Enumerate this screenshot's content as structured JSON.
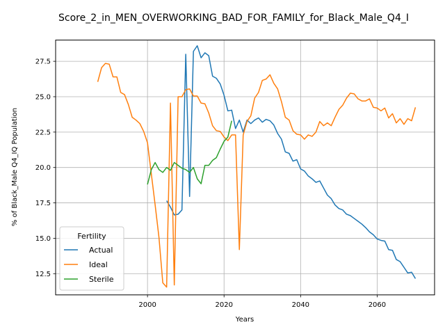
{
  "chart_data": {
    "type": "line",
    "title": "Score_2_in_MEN_OVERWORKING_BAD_FOR_FAMILY_for_Black_Male_Q4_I",
    "xlabel": "Years",
    "ylabel": "% of Black_Male Q4_IQ Population",
    "xlim": [
      1976,
      2075
    ],
    "ylim": [
      11.0,
      29.0
    ],
    "xticks": [
      2000,
      2020,
      2040,
      2060
    ],
    "yticks": [
      12.5,
      15.0,
      17.5,
      20.0,
      22.5,
      25.0,
      27.5
    ],
    "grid": true,
    "legend": {
      "title": "Fertility",
      "placement": "lower left"
    },
    "series": [
      {
        "name": "Actual",
        "color": "#1f77b4",
        "x": [
          2005,
          2006,
          2007,
          2008,
          2009,
          2010,
          2011,
          2012,
          2013,
          2014,
          2015,
          2016,
          2017,
          2018,
          2019,
          2020,
          2021,
          2022,
          2023,
          2024,
          2025,
          2026,
          2027,
          2028,
          2029,
          2030,
          2031,
          2032,
          2033,
          2034,
          2035,
          2036,
          2037,
          2038,
          2039,
          2040,
          2041,
          2042,
          2043,
          2044,
          2045,
          2046,
          2047,
          2048,
          2049,
          2050,
          2051,
          2052,
          2053,
          2054,
          2055,
          2056,
          2057,
          2058,
          2059,
          2060,
          2061,
          2062,
          2063,
          2064,
          2065,
          2066,
          2067,
          2068,
          2069,
          2070
        ],
        "y": [
          17.65,
          17.2,
          16.65,
          16.7,
          17.0,
          28.0,
          17.95,
          28.2,
          28.6,
          27.75,
          28.1,
          27.9,
          26.45,
          26.3,
          25.9,
          25.1,
          24.0,
          24.05,
          22.75,
          23.35,
          22.5,
          23.35,
          23.1,
          23.35,
          23.5,
          23.2,
          23.4,
          23.3,
          23.0,
          22.4,
          22.0,
          21.1,
          21.0,
          20.45,
          20.55,
          19.9,
          19.75,
          19.4,
          19.2,
          18.95,
          19.05,
          18.55,
          18.05,
          17.8,
          17.35,
          17.1,
          17.0,
          16.7,
          16.6,
          16.4,
          16.2,
          16.0,
          15.75,
          15.45,
          15.25,
          14.95,
          14.85,
          14.8,
          14.2,
          14.15,
          13.5,
          13.35,
          12.95,
          12.55,
          12.6,
          12.15
        ]
      },
      {
        "name": "Ideal",
        "color": "#ff7f0e",
        "x": [
          1987,
          1988,
          1989,
          1990,
          1991,
          1992,
          1993,
          1994,
          1995,
          1996,
          1997,
          1998,
          1999,
          2000,
          2001,
          2002,
          2003,
          2004,
          2005,
          2006,
          2007,
          2008,
          2009,
          2010,
          2011,
          2012,
          2013,
          2014,
          2015,
          2016,
          2017,
          2018,
          2019,
          2020,
          2021,
          2022,
          2023,
          2024,
          2025,
          2026,
          2027,
          2028,
          2029,
          2030,
          2031,
          2032,
          2033,
          2034,
          2035,
          2036,
          2037,
          2038,
          2039,
          2040,
          2041,
          2042,
          2043,
          2044,
          2045,
          2046,
          2047,
          2048,
          2049,
          2050,
          2051,
          2052,
          2053,
          2054,
          2055,
          2056,
          2057,
          2058,
          2059,
          2060,
          2061,
          2062,
          2063,
          2064,
          2065,
          2066,
          2067,
          2068,
          2069,
          2070
        ],
        "y": [
          26.05,
          27.05,
          27.35,
          27.3,
          26.4,
          26.4,
          25.3,
          25.15,
          24.45,
          23.55,
          23.35,
          23.1,
          22.55,
          21.75,
          19.55,
          17.35,
          15.05,
          11.85,
          11.55,
          24.55,
          11.7,
          25.0,
          25.0,
          25.5,
          25.55,
          25.05,
          25.05,
          24.55,
          24.5,
          23.85,
          22.95,
          22.6,
          22.55,
          22.15,
          21.9,
          22.3,
          22.3,
          14.2,
          22.3,
          23.25,
          23.65,
          24.9,
          25.3,
          26.15,
          26.25,
          26.55,
          25.95,
          25.55,
          24.65,
          23.55,
          23.35,
          22.6,
          22.35,
          22.3,
          22.0,
          22.3,
          22.2,
          22.5,
          23.25,
          22.95,
          23.15,
          22.95,
          23.55,
          24.1,
          24.4,
          24.9,
          25.25,
          25.2,
          24.85,
          24.7,
          24.7,
          24.85,
          24.25,
          24.2,
          24.0,
          24.2,
          23.5,
          23.8,
          23.15,
          23.45,
          23.05,
          23.45,
          23.3,
          24.25
        ]
      },
      {
        "name": "Sterile",
        "color": "#2ca02c",
        "x": [
          2000,
          2001,
          2002,
          2003,
          2004,
          2005,
          2006,
          2007,
          2008,
          2009,
          2010,
          2011,
          2012,
          2013,
          2014,
          2015,
          2016,
          2017,
          2018,
          2019,
          2020,
          2021,
          2022
        ],
        "y": [
          18.8,
          19.85,
          20.35,
          19.85,
          19.65,
          20.0,
          19.8,
          20.35,
          20.15,
          19.95,
          19.85,
          19.65,
          20.0,
          19.2,
          18.85,
          20.15,
          20.15,
          20.5,
          20.7,
          21.3,
          21.85,
          22.15,
          23.3
        ]
      }
    ]
  }
}
